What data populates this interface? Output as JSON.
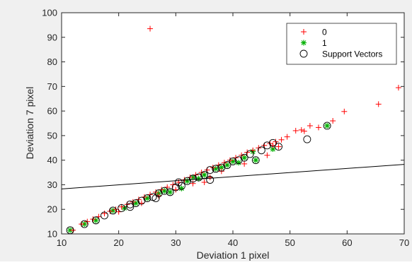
{
  "chart_data": {
    "type": "scatter",
    "xlabel": "Deviation 1 pixel",
    "ylabel": "Deviation 7 pixel",
    "xlim": [
      10,
      70
    ],
    "ylim": [
      10,
      100
    ],
    "xticks": [
      10,
      20,
      30,
      40,
      50,
      60,
      70
    ],
    "yticks": [
      10,
      20,
      30,
      40,
      50,
      60,
      70,
      80,
      90,
      100
    ],
    "grid": false,
    "legend_position": "top-right",
    "legend": [
      {
        "label": "0",
        "marker": "plus",
        "color": "#ff0000"
      },
      {
        "label": "1",
        "marker": "asterisk",
        "color": "#00b000"
      },
      {
        "label": "Support Vectors",
        "marker": "circle",
        "color": "#000000"
      }
    ],
    "series": [
      {
        "name": "0",
        "marker": "plus",
        "color": "#ff0000",
        "points": [
          [
            25.5,
            93.5
          ],
          [
            69,
            69.5
          ],
          [
            65.5,
            62.8
          ],
          [
            59.5,
            59.8
          ],
          [
            57.5,
            56.0
          ],
          [
            55,
            53.3
          ],
          [
            53.5,
            54.0
          ],
          [
            52.5,
            51.8
          ],
          [
            52,
            52.3
          ],
          [
            51,
            52.0
          ],
          [
            49.5,
            49.5
          ],
          [
            48.5,
            48.3
          ],
          [
            47.5,
            47.5
          ],
          [
            46.5,
            46.8
          ],
          [
            45.5,
            46.0
          ],
          [
            44.5,
            45.0
          ],
          [
            43.5,
            44.0
          ],
          [
            42.5,
            43.2
          ],
          [
            41.5,
            42.0
          ],
          [
            40.5,
            41.0
          ],
          [
            39.5,
            40.0
          ],
          [
            38.5,
            39.0
          ],
          [
            37.5,
            38.0
          ],
          [
            36.5,
            37.0
          ],
          [
            35.5,
            36.0
          ],
          [
            34.5,
            35.0
          ],
          [
            33.5,
            34.0
          ],
          [
            32.5,
            33.0
          ],
          [
            31.5,
            32.0
          ],
          [
            30.5,
            31.0
          ],
          [
            29.5,
            30.0
          ],
          [
            28.5,
            29.0
          ],
          [
            27.5,
            28.0
          ],
          [
            26.5,
            27.0
          ],
          [
            25.5,
            26.0
          ],
          [
            24.5,
            25.0
          ],
          [
            23.5,
            24.0
          ],
          [
            22.5,
            23.0
          ],
          [
            21.5,
            22.0
          ],
          [
            20.5,
            21.0
          ],
          [
            19.5,
            20.0
          ],
          [
            18.5,
            19.2
          ],
          [
            17.5,
            18.3
          ],
          [
            16.5,
            17.0
          ],
          [
            15.5,
            16.0
          ],
          [
            14.5,
            15.0
          ],
          [
            13.5,
            14.0
          ],
          [
            12,
            11.5
          ],
          [
            27,
            25.5
          ],
          [
            33,
            30.5
          ],
          [
            38,
            35.5
          ],
          [
            42,
            38.5
          ],
          [
            46,
            42.0
          ],
          [
            48,
            45.5
          ],
          [
            47,
            46.0
          ],
          [
            36,
            33.0
          ],
          [
            30,
            28.0
          ],
          [
            24,
            22.5
          ],
          [
            20,
            19.0
          ],
          [
            35,
            31.0
          ]
        ]
      },
      {
        "name": "1",
        "marker": "asterisk",
        "color": "#00b000",
        "points": [
          [
            11.5,
            11.5
          ],
          [
            14,
            14.0
          ],
          [
            16,
            15.5
          ],
          [
            19,
            19.5
          ],
          [
            21,
            20.5
          ],
          [
            23,
            22.5
          ],
          [
            25,
            24.5
          ],
          [
            27,
            26.5
          ],
          [
            29,
            27.0
          ],
          [
            31,
            28.5
          ],
          [
            32,
            31.5
          ],
          [
            33,
            33.0
          ],
          [
            35,
            34.0
          ],
          [
            37,
            36.5
          ],
          [
            39,
            38.0
          ],
          [
            40,
            39.5
          ],
          [
            41,
            39.0
          ],
          [
            42,
            41.0
          ],
          [
            43.5,
            43.5
          ],
          [
            44,
            40.0
          ],
          [
            47,
            44.5
          ],
          [
            56.5,
            54.0
          ],
          [
            28,
            27.5
          ],
          [
            34,
            32.5
          ],
          [
            38,
            37.0
          ]
        ]
      },
      {
        "name": "Support Vectors",
        "marker": "circle",
        "color": "#000000",
        "points": [
          [
            11.5,
            11.5
          ],
          [
            14,
            14.0
          ],
          [
            16,
            15.5
          ],
          [
            17.5,
            17.5
          ],
          [
            19,
            19.5
          ],
          [
            20.5,
            20.5
          ],
          [
            22,
            22.0
          ],
          [
            23,
            22.5
          ],
          [
            24,
            23.5
          ],
          [
            25,
            24.5
          ],
          [
            26,
            25.0
          ],
          [
            27,
            26.5
          ],
          [
            28,
            27.5
          ],
          [
            29,
            27.0
          ],
          [
            30,
            29.0
          ],
          [
            31,
            29.5
          ],
          [
            32,
            31.5
          ],
          [
            33,
            32.5
          ],
          [
            34,
            33.0
          ],
          [
            35,
            34.0
          ],
          [
            36,
            36.0
          ],
          [
            37,
            36.5
          ],
          [
            38,
            37.0
          ],
          [
            39,
            38.0
          ],
          [
            40,
            39.5
          ],
          [
            41,
            40.0
          ],
          [
            42,
            41.0
          ],
          [
            43,
            42.5
          ],
          [
            44,
            40.0
          ],
          [
            45,
            44.0
          ],
          [
            46,
            46.0
          ],
          [
            47,
            47.0
          ],
          [
            48,
            45.5
          ],
          [
            53,
            48.5
          ],
          [
            56.5,
            54.0
          ],
          [
            36,
            32.0
          ],
          [
            30.5,
            31.0
          ],
          [
            26.5,
            24.5
          ],
          [
            22,
            21.0
          ]
        ]
      }
    ],
    "lines": [
      {
        "name": "",
        "x": [
          10,
          70
        ],
        "y": [
          28.3,
          38.3
        ],
        "color": "#000000"
      }
    ]
  }
}
